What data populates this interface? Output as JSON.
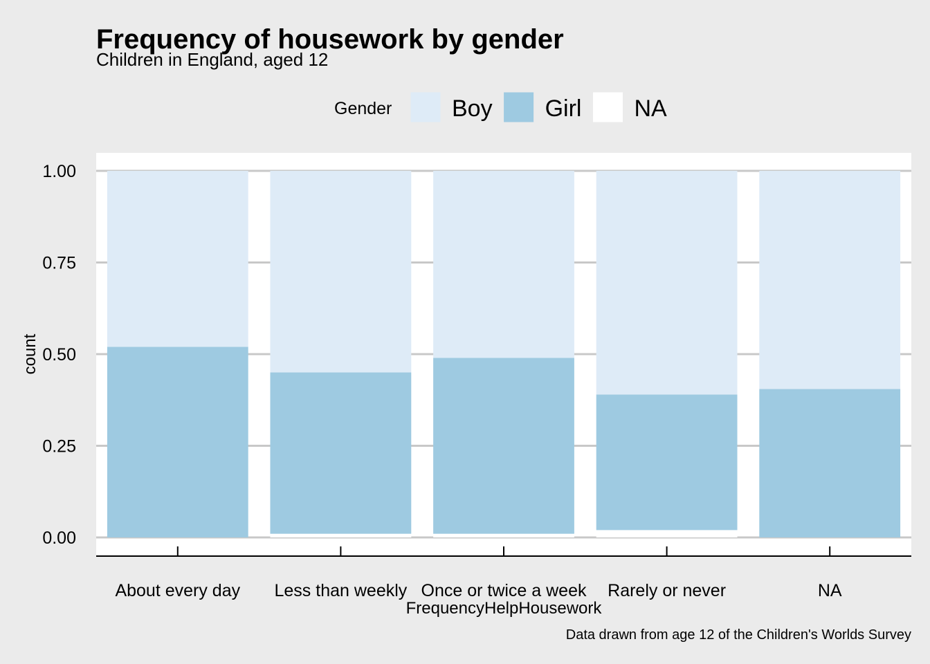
{
  "chart_data": {
    "type": "bar",
    "stacked": true,
    "title": "Frequency of housework by gender",
    "subtitle": "Children in England, aged 12",
    "xlabel": "FrequencyHelpHousework",
    "ylabel": "count",
    "caption": "Data drawn from age 12 of the Children's Worlds Survey",
    "categories": [
      "About every day",
      "Less than weekly",
      "Once or twice a week",
      "Rarely or never",
      "NA"
    ],
    "series": [
      {
        "name": "Boy",
        "color": "#deebf7",
        "values": [
          0.48,
          0.55,
          0.51,
          0.61,
          0.595
        ]
      },
      {
        "name": "Girl",
        "color": "#9ecae1",
        "values": [
          0.52,
          0.44,
          0.48,
          0.37,
          0.405
        ]
      },
      {
        "name": "NA",
        "color": "#ffffff",
        "values": [
          0.0,
          0.01,
          0.01,
          0.02,
          0.0
        ]
      }
    ],
    "ylim": [
      0,
      1
    ],
    "yticks": [
      0,
      0.25,
      0.5,
      0.75,
      1
    ],
    "ytick_labels": [
      "0.00",
      "0.25",
      "0.50",
      "0.75",
      "1.00"
    ],
    "grid": "horizontal",
    "legend": {
      "title": "Gender",
      "position": "top"
    }
  }
}
